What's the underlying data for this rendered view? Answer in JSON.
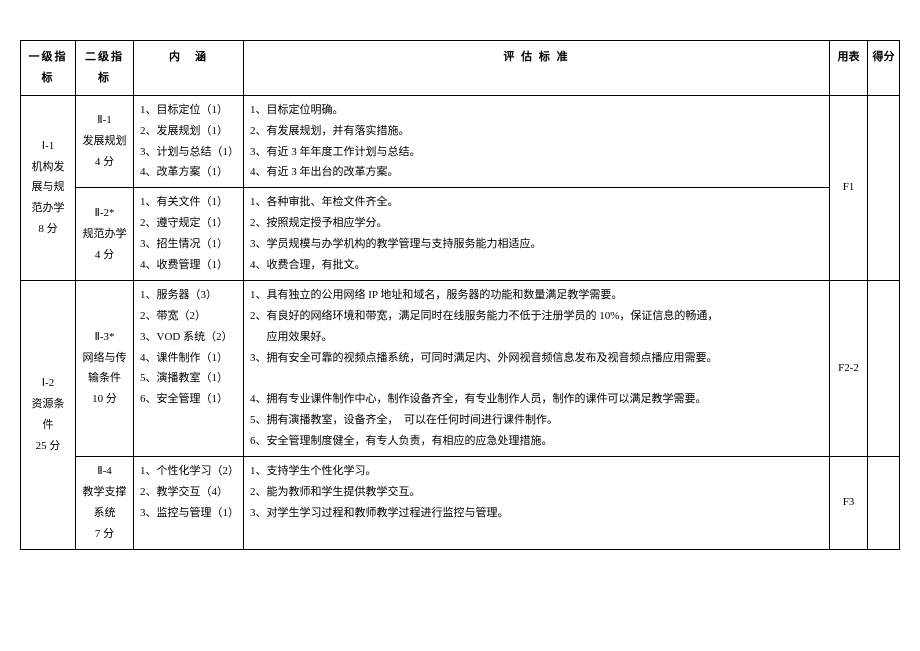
{
  "headers": {
    "col1": "一级指标",
    "col2": "二级指标",
    "col3": "内　涵",
    "col4": "评 估 标 准",
    "col5": "用表",
    "col6": "得分"
  },
  "level1": [
    {
      "name": "Ⅰ-1\n机构发展与规范办学\n8 分",
      "groups": [
        {
          "l2": "Ⅱ-1\n发展规划\n4 分",
          "content": [
            "1、目标定位（1）",
            "2、发展规划（1）",
            "3、计划与总结（1）",
            "4、改革方案（1）"
          ],
          "standard": [
            "1、目标定位明确。",
            "2、有发展规划，并有落实措施。",
            "3、有近 3 年年度工作计划与总结。",
            "4、有近 3 年出台的改革方案。"
          ],
          "form": "F1"
        },
        {
          "l2": "Ⅱ-2*\n规范办学\n4 分",
          "content": [
            "1、有关文件（1）",
            "2、遵守规定（1）",
            "3、招生情况（1）",
            "4、收费管理（1）"
          ],
          "standard": [
            "1、各种审批、年检文件齐全。",
            "2、按照规定授予相应学分。",
            "3、学员规模与办学机构的教学管理与支持服务能力相适应。",
            "4、收费合理，有批文。"
          ],
          "form": ""
        }
      ]
    },
    {
      "name": "Ⅰ-2\n资源条件\n25 分",
      "groups": [
        {
          "l2": "Ⅱ-3*\n网络与传输条件\n10 分",
          "content": [
            "1、服务器（3）",
            "2、带宽（2）",
            "3、VOD 系统（2）",
            "4、课件制作（1）",
            "5、演播教室（1）",
            "6、安全管理（1）"
          ],
          "standard": [
            "1、具有独立的公用网络 IP 地址和域名，服务器的功能和数量满足教学需要。",
            "2、有良好的网络环境和带宽，满足同时在线服务能力不低于注册学员的 10%，保证信息的畅通，应用效果好。",
            "3、拥有安全可靠的视频点播系统，可同时满足内、外网视音频信息发布及视音频点播应用需要。",
            "",
            "4、拥有专业课件制作中心，制作设备齐全，有专业制作人员，制作的课件可以满足教学需要。",
            "5、拥有演播教室，设备齐全，　可以在任何时间进行课件制作。",
            "6、安全管理制度健全，有专人负责，有相应的应急处理措施。"
          ],
          "form": "F2-2"
        },
        {
          "l2": "Ⅱ-4\n教学支撑系统\n7 分",
          "content": [
            "1、个性化学习（2）",
            "2、教学交互（4）",
            "3、监控与管理（1）"
          ],
          "standard": [
            "1、支持学生个性化学习。",
            "2、能为教师和学生提供教学交互。",
            "3、对学生学习过程和教师教学过程进行监控与管理。"
          ],
          "form": "F3"
        }
      ]
    }
  ]
}
